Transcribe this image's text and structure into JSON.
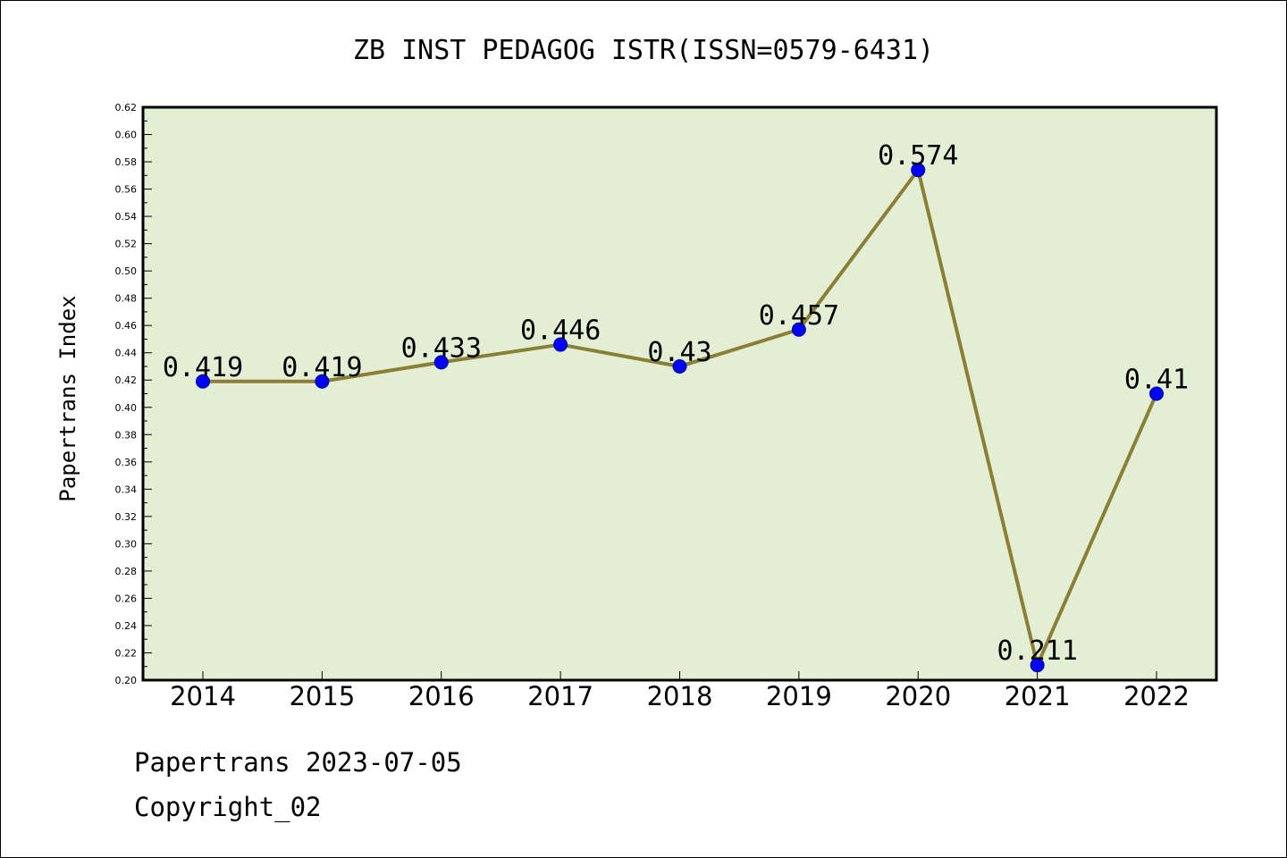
{
  "chart_data": {
    "type": "line",
    "title": "ZB INST PEDAGOG ISTR(ISSN=0579-6431)",
    "xlabel": "",
    "ylabel": "Papertrans Index",
    "categories": [
      "2014",
      "2015",
      "2016",
      "2017",
      "2018",
      "2019",
      "2020",
      "2021",
      "2022"
    ],
    "series": [
      {
        "values": [
          0.419,
          0.419,
          0.433,
          0.446,
          0.43,
          0.457,
          0.574,
          0.211,
          0.41
        ],
        "data_labels": [
          "0.419",
          "0.419",
          "0.433",
          "0.446",
          "0.43",
          "0.457",
          "0.574",
          "0.211",
          "0.41"
        ]
      }
    ],
    "ylim": [
      0.2,
      0.62
    ],
    "yticks": [
      "0.20",
      "0.22",
      "0.24",
      "0.26",
      "0.28",
      "0.30",
      "0.32",
      "0.34",
      "0.36",
      "0.38",
      "0.40",
      "0.42",
      "0.44",
      "0.46",
      "0.48",
      "0.50",
      "0.52",
      "0.54",
      "0.56",
      "0.58",
      "0.60",
      "0.62"
    ],
    "grid": false,
    "colors": {
      "plot_background": "#e2efd5",
      "line": "#8b7f35",
      "marker": "#0000ff",
      "marker_edge": "#00008b"
    }
  },
  "footer": {
    "line1": "Papertrans 2023-07-05",
    "line2": "Copyright_02"
  }
}
